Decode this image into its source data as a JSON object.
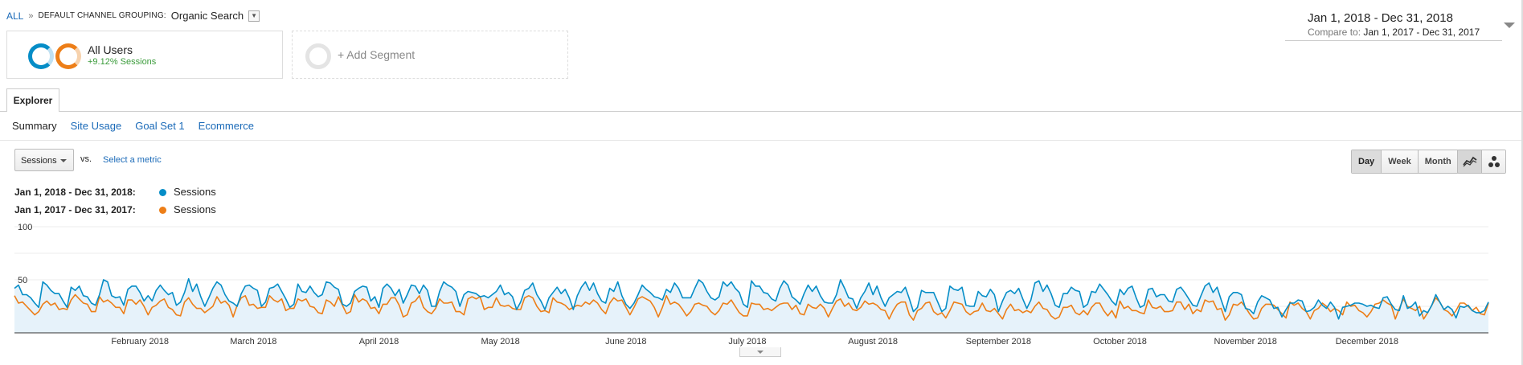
{
  "breadcrumb": {
    "all": "ALL",
    "separator": "»",
    "dimension": "DEFAULT CHANNEL GROUPING:",
    "value": "Organic Search"
  },
  "date_range": {
    "main": "Jan 1, 2018 - Dec 31, 2018",
    "compare_label": "Compare to:",
    "compare_value": "Jan 1, 2017 - Dec 31, 2017"
  },
  "segments": {
    "all_users_title": "All Users",
    "all_users_sub": "+9.12% Sessions",
    "add_segment": "+ Add Segment"
  },
  "tabs": {
    "explorer": "Explorer",
    "subtabs": [
      "Summary",
      "Site Usage",
      "Goal Set 1",
      "Ecommerce"
    ]
  },
  "metric": {
    "selected": "Sessions",
    "vs": "vs.",
    "select_metric": "Select a metric"
  },
  "period_buttons": [
    "Day",
    "Week",
    "Month"
  ],
  "legend": [
    {
      "range": "Jan 1, 2018 - Dec 31, 2018:",
      "metric": "Sessions",
      "color": "#058dc7"
    },
    {
      "range": "Jan 1, 2017 - Dec 31, 2017:",
      "metric": "Sessions",
      "color": "#ed7e17"
    }
  ],
  "icons": [
    "chevron-down-icon",
    "line-chart-icon",
    "motion-chart-icon"
  ],
  "chart_data": {
    "type": "line",
    "ylim": [
      0,
      100
    ],
    "y_ticks": [
      "100",
      "50"
    ],
    "x_labels": [
      "February 2018",
      "March 2018",
      "April 2018",
      "May 2018",
      "June 2018",
      "July 2018",
      "August 2018",
      "September 2018",
      "October 2018",
      "November 2018",
      "December 2018"
    ],
    "grid": true,
    "monthly_mean": {
      "2018": [
        37,
        38,
        37,
        38,
        38,
        37,
        37,
        35,
        36,
        35,
        27,
        25
      ],
      "2017": [
        27,
        26,
        27,
        27,
        26,
        26,
        24,
        22,
        22,
        23,
        22,
        24
      ]
    },
    "weekly_pattern": [
      1.15,
      1.18,
      1.12,
      1.08,
      0.9,
      0.75,
      0.82
    ],
    "series": [
      {
        "name": "Sessions",
        "period": "Jan 1, 2018 - Dec 31, 2018",
        "color": "#058dc7",
        "fill": "#e6f2fa"
      },
      {
        "name": "Sessions",
        "period": "Jan 1, 2017 - Dec 31, 2017",
        "color": "#ed7e17"
      }
    ]
  }
}
